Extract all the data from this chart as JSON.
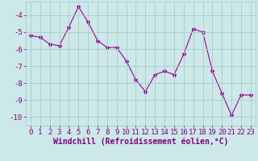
{
  "x": [
    0,
    1,
    2,
    3,
    4,
    5,
    6,
    7,
    8,
    9,
    10,
    11,
    12,
    13,
    14,
    15,
    16,
    17,
    18,
    19,
    20,
    21,
    22,
    23
  ],
  "y": [
    -5.2,
    -5.3,
    -5.7,
    -5.8,
    -4.7,
    -3.5,
    -4.4,
    -5.5,
    -5.9,
    -5.9,
    -6.7,
    -7.8,
    -8.5,
    -7.5,
    -7.3,
    -7.5,
    -6.3,
    -4.8,
    -5.0,
    -7.3,
    -8.6,
    -9.9,
    -8.7,
    -8.7
  ],
  "line_color": "#990099",
  "marker": "*",
  "marker_size": 3,
  "bg_color": "#cce8e8",
  "grid_color": "#aacccc",
  "xlabel": "Windchill (Refroidissement éolien,°C)",
  "xlabel_color": "#800080",
  "xlabel_fontsize": 7,
  "tick_color": "#800080",
  "tick_fontsize": 6.5,
  "ylim": [
    -10.5,
    -3.2
  ],
  "xlim": [
    -0.5,
    23.5
  ],
  "yticks": [
    -10,
    -9,
    -8,
    -7,
    -6,
    -5,
    -4
  ],
  "xticks": [
    0,
    1,
    2,
    3,
    4,
    5,
    6,
    7,
    8,
    9,
    10,
    11,
    12,
    13,
    14,
    15,
    16,
    17,
    18,
    19,
    20,
    21,
    22,
    23
  ]
}
